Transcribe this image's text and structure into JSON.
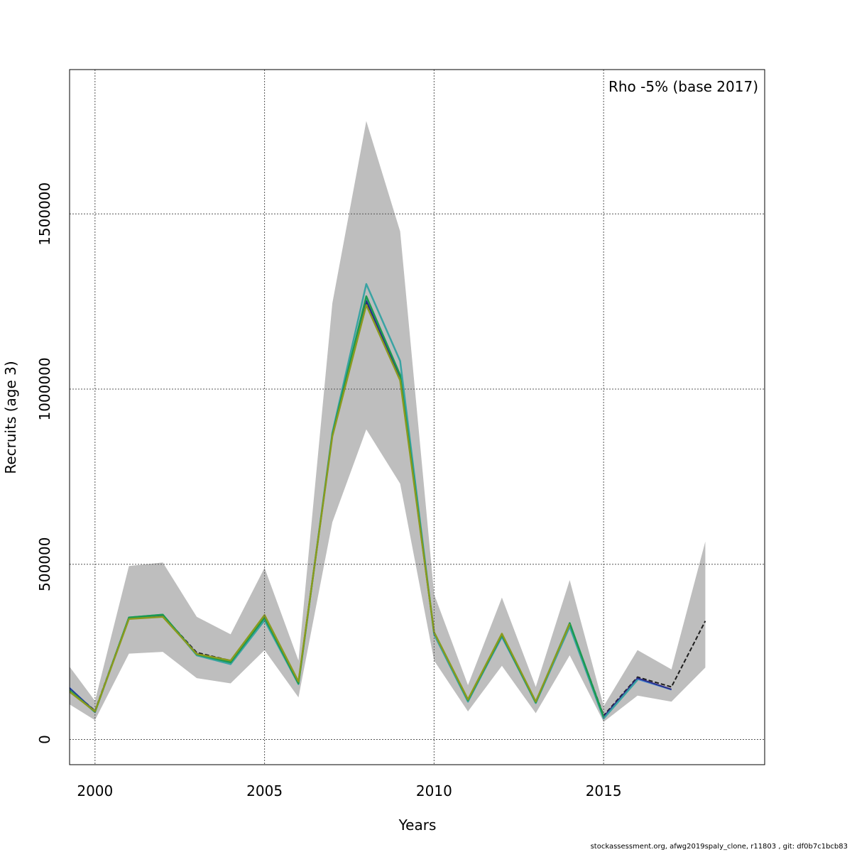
{
  "footer": "stockassessment.org, afwg2019spaly_clone, r11803 , git: df0b7c1bcb83",
  "chart_data": {
    "type": "line",
    "title": "",
    "legend_text": "Rho -5% (base 2017)",
    "legend_position": "top-right",
    "xlabel": "Years",
    "ylabel": "Recruits (age 3)",
    "xlim": [
      1999.25,
      2019.75
    ],
    "ylim": [
      -72000,
      1912000
    ],
    "x_ticks": [
      2000,
      2005,
      2010,
      2015
    ],
    "x_tick_labels": [
      "2000",
      "2005",
      "2010",
      "2015"
    ],
    "y_ticks": [
      0,
      500000,
      1000000,
      1500000
    ],
    "y_tick_labels": [
      "0",
      "500000",
      "1000000",
      "1500000"
    ],
    "grid": true,
    "confidence_band": {
      "x": [
        1999,
        2000,
        2001,
        2002,
        2003,
        2004,
        2005,
        2006,
        2007,
        2008,
        2009,
        2010,
        2011,
        2012,
        2013,
        2014,
        2015,
        2016,
        2017,
        2018
      ],
      "lower": [
        115000,
        55000,
        245000,
        250000,
        175000,
        160000,
        255000,
        120000,
        620000,
        885000,
        730000,
        225000,
        80000,
        210000,
        75000,
        240000,
        50000,
        125000,
        108000,
        205000
      ],
      "upper": [
        240000,
        110000,
        495000,
        505000,
        350000,
        300000,
        490000,
        225000,
        1245000,
        1765000,
        1450000,
        415000,
        155000,
        405000,
        150000,
        455000,
        95000,
        255000,
        200000,
        565000
      ]
    },
    "series": [
      {
        "color": "#1e1e1e",
        "dashed": true,
        "width": 2,
        "x": [
          1999,
          2000,
          2001,
          2002,
          2003,
          2004,
          2005,
          2006,
          2007,
          2008,
          2009,
          2010,
          2011,
          2012,
          2013,
          2014,
          2015,
          2016,
          2017,
          2018
        ],
        "y": [
          165000,
          82000,
          348000,
          354000,
          248000,
          225000,
          350000,
          165000,
          870000,
          1245000,
          1030000,
          305000,
          112000,
          298000,
          108000,
          330000,
          68000,
          178000,
          150000,
          338000
        ]
      },
      {
        "color": "#3a7fd0",
        "dashed": false,
        "width": 2,
        "x": [
          1999,
          2000,
          2001,
          2002,
          2003,
          2004,
          2005,
          2006,
          2007,
          2008,
          2009,
          2010,
          2011,
          2012,
          2013,
          2014,
          2015,
          2016,
          2017
        ],
        "y": [
          170000,
          80000,
          345000,
          352000,
          242000,
          220000,
          345000,
          160000,
          868000,
          1262000,
          1035000,
          302000,
          110000,
          292000,
          106000,
          325000,
          60000,
          172000,
          142000
        ]
      },
      {
        "color": "#2b2b88",
        "dashed": false,
        "width": 2,
        "x": [
          1999,
          2000,
          2001,
          2002,
          2003,
          2004,
          2005,
          2006,
          2007,
          2008,
          2009,
          2010,
          2011,
          2012,
          2013,
          2014,
          2015,
          2016,
          2017
        ],
        "y": [
          168000,
          80000,
          346000,
          354000,
          245000,
          222000,
          348000,
          162000,
          868000,
          1252000,
          1030000,
          303000,
          111000,
          297000,
          107000,
          330000,
          65000,
          175000,
          143000
        ]
      },
      {
        "color": "#3aa3a3",
        "dashed": false,
        "width": 2.5,
        "x": [
          1999,
          2000,
          2001,
          2002,
          2003,
          2004,
          2005,
          2006,
          2007,
          2008,
          2009,
          2010,
          2011,
          2012,
          2013,
          2014,
          2015,
          2016
        ],
        "y": [
          162000,
          78000,
          348000,
          356000,
          240000,
          215000,
          340000,
          158000,
          875000,
          1300000,
          1080000,
          300000,
          108000,
          295000,
          104000,
          322000,
          60000,
          170000
        ]
      },
      {
        "color": "#1a9a50",
        "dashed": false,
        "width": 2.5,
        "x": [
          1999,
          2000,
          2001,
          2002,
          2003,
          2004,
          2005,
          2006,
          2007,
          2008,
          2009,
          2010,
          2011,
          2012,
          2013,
          2014,
          2015
        ],
        "y": [
          160000,
          79000,
          348000,
          356000,
          243000,
          220000,
          348000,
          160000,
          870000,
          1265000,
          1040000,
          306000,
          112000,
          298000,
          106000,
          332000,
          65000
        ]
      },
      {
        "color": "#8a9a1e",
        "dashed": false,
        "width": 2.5,
        "x": [
          1999,
          2000,
          2001,
          2002,
          2003,
          2004,
          2005,
          2006,
          2007,
          2008,
          2009,
          2010,
          2011,
          2012,
          2013,
          2014
        ],
        "y": [
          155000,
          80000,
          344000,
          350000,
          244000,
          225000,
          355000,
          165000,
          865000,
          1240000,
          1025000,
          306000,
          114000,
          302000,
          108000,
          330000
        ]
      }
    ]
  }
}
